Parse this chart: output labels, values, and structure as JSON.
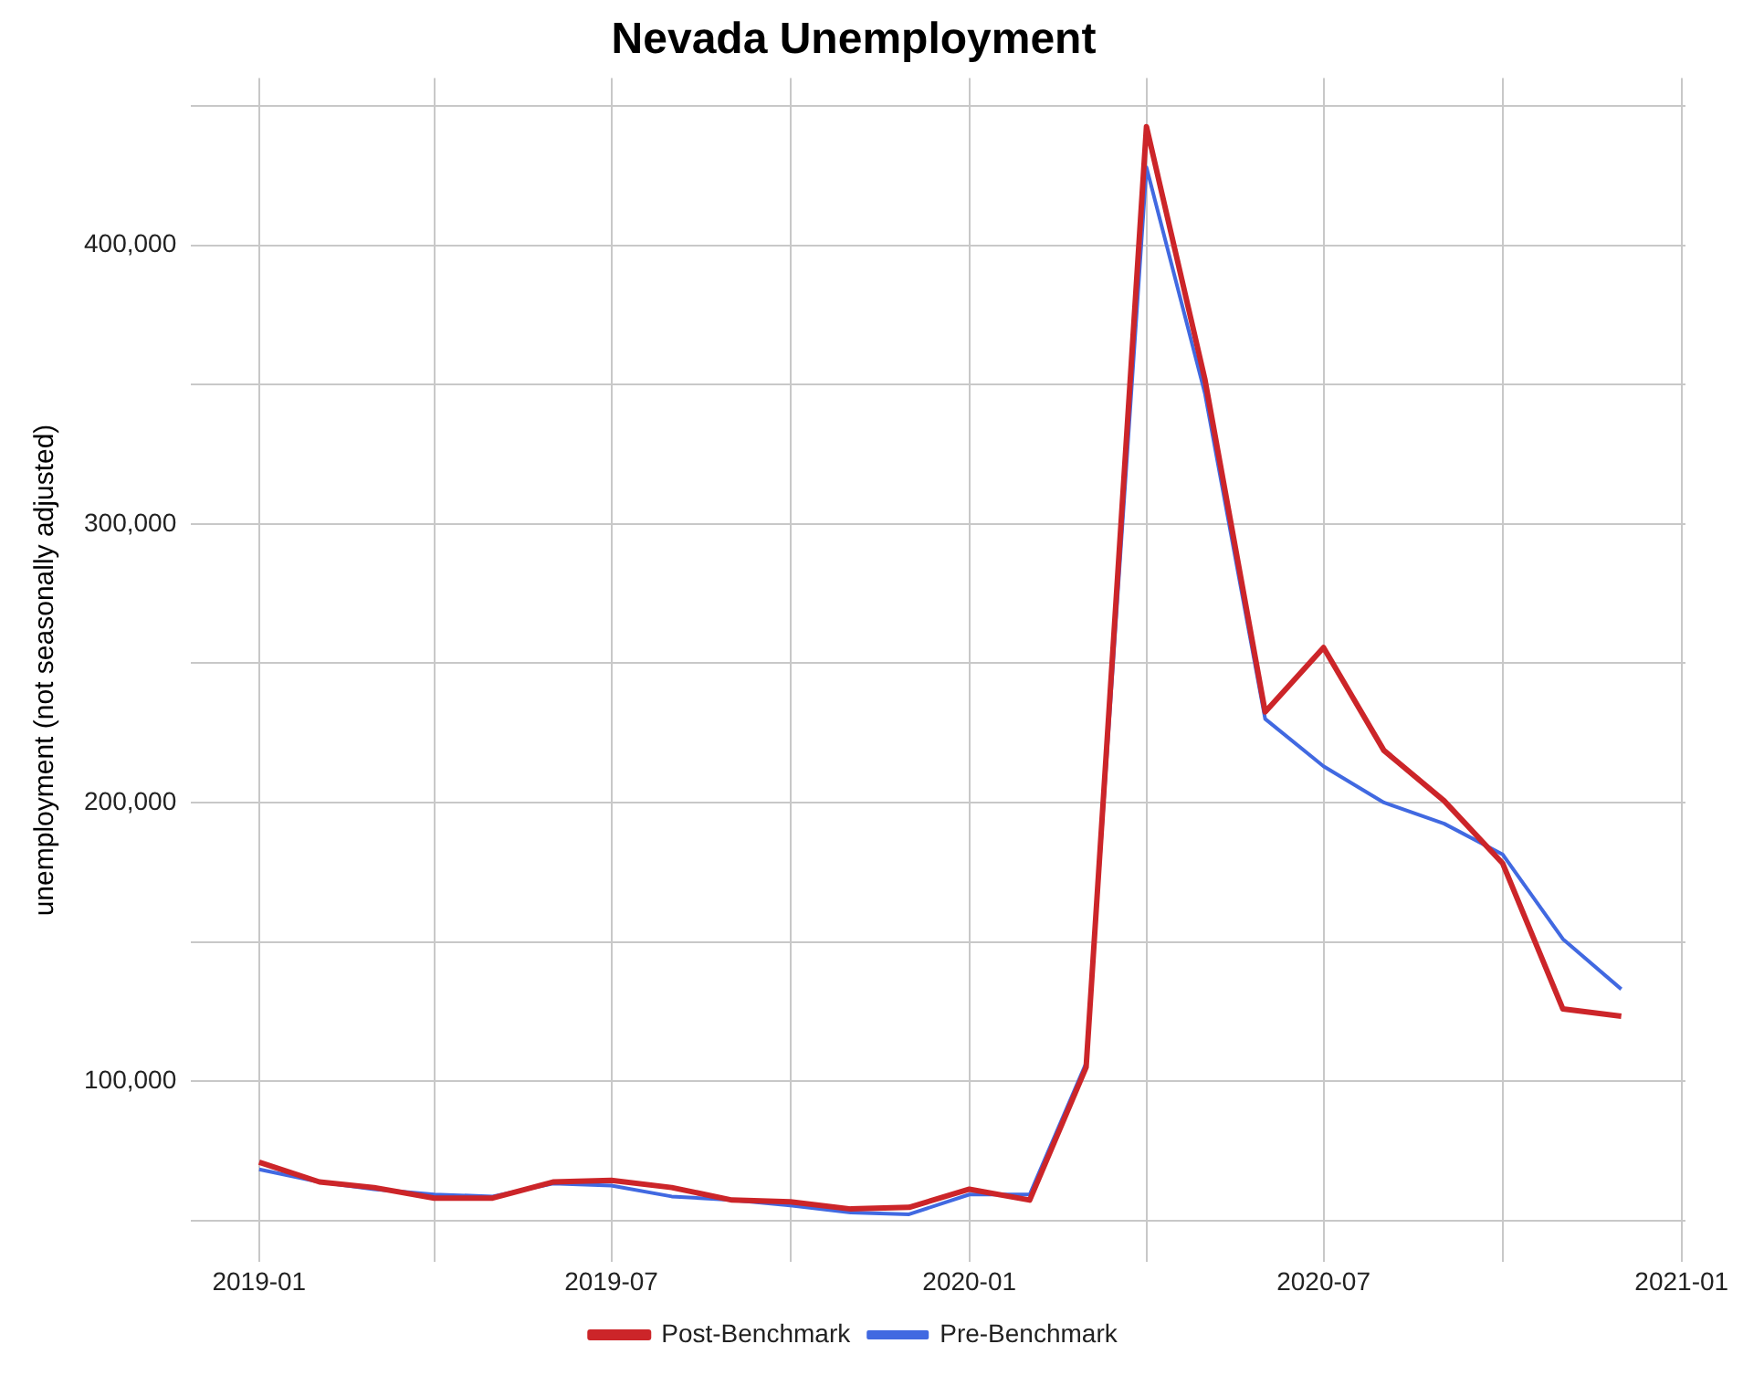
{
  "chart_data": {
    "type": "line",
    "title": "Nevada Unemployment",
    "ylabel": "unemployment (not seasonally adjusted)",
    "x": [
      "2019-01",
      "2019-02",
      "2019-03",
      "2019-04",
      "2019-05",
      "2019-06",
      "2019-07",
      "2019-08",
      "2019-09",
      "2019-10",
      "2019-11",
      "2019-12",
      "2020-01",
      "2020-02",
      "2020-03",
      "2020-04",
      "2020-05",
      "2020-06",
      "2020-07",
      "2020-08",
      "2020-09",
      "2020-10",
      "2020-11",
      "2020-12"
    ],
    "series": [
      {
        "name": "Post-Benchmark",
        "color": "#cc2529",
        "values": [
          70900,
          63800,
          61800,
          58000,
          58000,
          63800,
          64400,
          61800,
          57300,
          56700,
          54100,
          54700,
          61200,
          57300,
          105000,
          442600,
          352000,
          232500,
          255600,
          218700,
          200600,
          178200,
          125900,
          123300
        ]
      },
      {
        "name": "Pre-Benchmark",
        "color": "#4169e1",
        "values": [
          68300,
          63800,
          61200,
          59300,
          58600,
          63200,
          62500,
          58600,
          57300,
          55400,
          52800,
          52200,
          59300,
          59300,
          106500,
          428000,
          347000,
          230000,
          213000,
          200000,
          192400,
          181400,
          151000,
          133000
        ]
      }
    ],
    "xlim": [
      "2018-11-27",
      "2021-01-03"
    ],
    "xticks": [
      {
        "value": "2019-01",
        "label": "2019-01"
      },
      {
        "value": "2019-04",
        "label": null
      },
      {
        "value": "2019-07",
        "label": "2019-07"
      },
      {
        "value": "2019-10",
        "label": null
      },
      {
        "value": "2020-01",
        "label": "2020-01"
      },
      {
        "value": "2020-04",
        "label": null
      },
      {
        "value": "2020-07",
        "label": "2020-07"
      },
      {
        "value": "2020-10",
        "label": null
      },
      {
        "value": "2021-01",
        "label": "2021-01"
      }
    ],
    "ylim": [
      35000,
      460000
    ],
    "yticks": [
      {
        "value": 50000,
        "label": null
      },
      {
        "value": 100000,
        "label": "100,000"
      },
      {
        "value": 150000,
        "label": null
      },
      {
        "value": 200000,
        "label": "200,000"
      },
      {
        "value": 250000,
        "label": null
      },
      {
        "value": 300000,
        "label": "300,000"
      },
      {
        "value": 350000,
        "label": null
      },
      {
        "value": 400000,
        "label": "400,000"
      },
      {
        "value": 450000,
        "label": null
      }
    ],
    "grid": true,
    "legend": "bottom",
    "marker": "none",
    "line_style": "solid"
  }
}
